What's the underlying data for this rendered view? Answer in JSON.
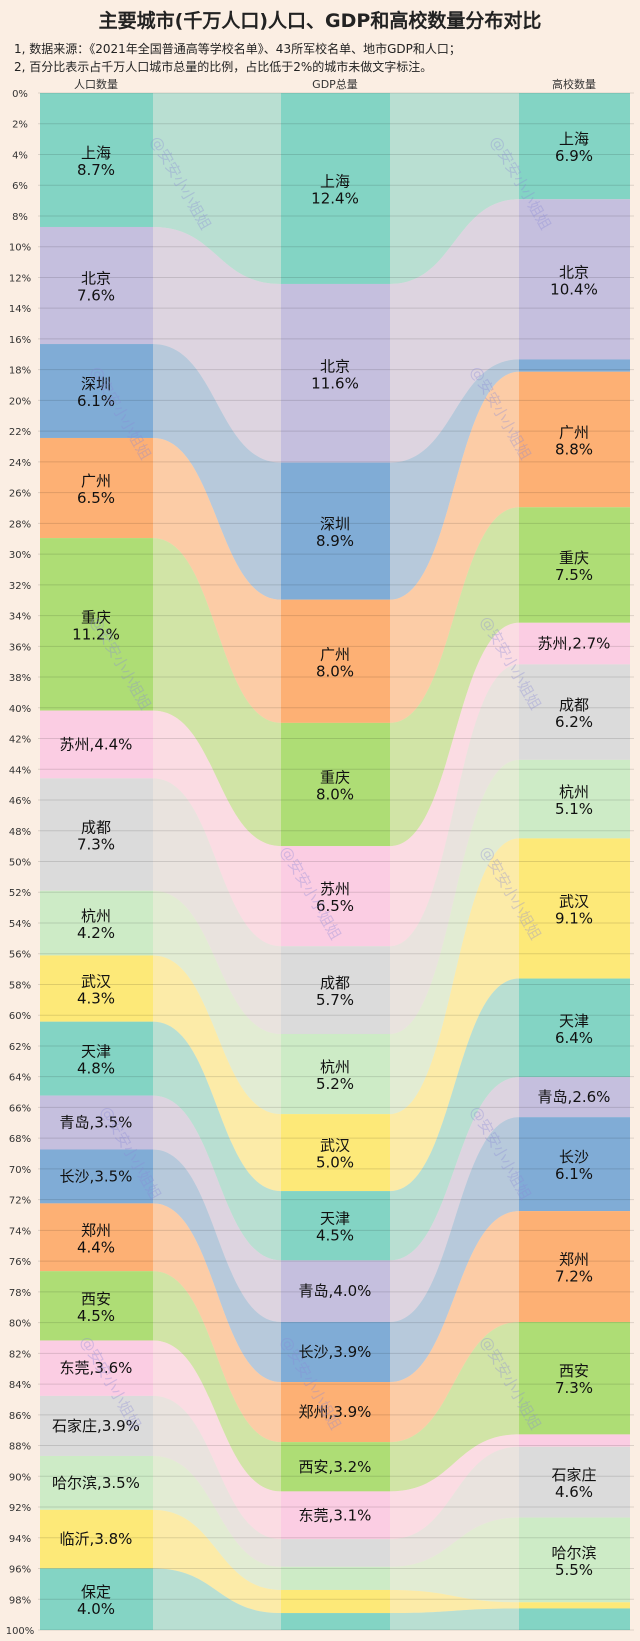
{
  "title": "主要城市(千万人口)人口、GDP和高校数量分布对比",
  "notes": [
    "1, 数据来源：《2021年全国普通高等学校名单》、43所军校名单、地市GDP和人口；",
    "2, 百分比表示占千万人口城市总量的比例，占比低于2%的城市未做文字标注。"
  ],
  "watermark": "@安安小小姐姐",
  "chart_data": {
    "type": "sankey",
    "columns": [
      "人口数量",
      "GDP总量",
      "高校数量"
    ],
    "yticks": [
      "0%",
      "2%",
      "4%",
      "6%",
      "8%",
      "10%",
      "12%",
      "14%",
      "16%",
      "18%",
      "20%",
      "22%",
      "24%",
      "26%",
      "28%",
      "30%",
      "32%",
      "34%",
      "36%",
      "38%",
      "40%",
      "42%",
      "44%",
      "46%",
      "48%",
      "50%",
      "52%",
      "54%",
      "56%",
      "58%",
      "60%",
      "62%",
      "64%",
      "66%",
      "68%",
      "70%",
      "72%",
      "74%",
      "76%",
      "78%",
      "80%",
      "82%",
      "84%",
      "86%",
      "88%",
      "90%",
      "92%",
      "94%",
      "96%",
      "98%",
      "100%"
    ],
    "cities": [
      "上海",
      "北京",
      "深圳",
      "广州",
      "重庆",
      "苏州",
      "成都",
      "杭州",
      "武汉",
      "天津",
      "青岛",
      "长沙",
      "郑州",
      "西安",
      "东莞",
      "石家庄",
      "哈尔滨",
      "临沂",
      "保定"
    ],
    "colors": {
      "上海": "#83d4c4",
      "北京": "#c5bfde",
      "深圳": "#80acd6",
      "广州": "#fdb074",
      "重庆": "#aedd75",
      "苏州": "#fbcde3",
      "成都": "#dbdbdb",
      "杭州": "#cdebc6",
      "武汉": "#fde978",
      "天津": "#83d4c4",
      "青岛": "#c5bfde",
      "长沙": "#80acd6",
      "郑州": "#fdb074",
      "西安": "#aedd75",
      "东莞": "#fbcde3",
      "石家庄": "#dbdbdb",
      "哈尔滨": "#cdebc6",
      "临沂": "#fde978",
      "保定": "#83d4c4"
    },
    "population_pct": {
      "上海": 8.7,
      "北京": 7.6,
      "深圳": 6.1,
      "广州": 6.5,
      "重庆": 11.2,
      "苏州": 4.4,
      "成都": 7.3,
      "杭州": 4.2,
      "武汉": 4.3,
      "天津": 4.8,
      "青岛": 3.5,
      "长沙": 3.5,
      "郑州": 4.4,
      "西安": 4.5,
      "东莞": 3.6,
      "石家庄": 3.9,
      "哈尔滨": 3.5,
      "临沂": 3.8,
      "保定": 4.0
    },
    "population_labels": {
      "上海": "8.7%",
      "北京": "7.6%",
      "深圳": "6.1%",
      "广州": "6.5%",
      "重庆": "11.2%",
      "苏州": "4.4%",
      "成都": "7.3%",
      "杭州": "4.2%",
      "武汉": "4.3%",
      "天津": "4.8%",
      "青岛": "3.5%",
      "长沙": "3.5%",
      "郑州": "4.4%",
      "西安": "4.5%",
      "东莞": "3.6%",
      "石家庄": "3.9%",
      "哈尔滨": "3.5%",
      "临沂": "3.8%",
      "保定": "4.0%"
    },
    "gdp_pct": {
      "上海": 12.4,
      "北京": 11.6,
      "深圳": 8.9,
      "广州": 8.0,
      "重庆": 8.0,
      "苏州": 6.5,
      "成都": 5.7,
      "杭州": 5.2,
      "武汉": 5.0,
      "天津": 4.5,
      "青岛": 4.0,
      "长沙": 3.9,
      "郑州": 3.9,
      "西安": 3.2,
      "东莞": 3.1,
      "石家庄": 1.8,
      "哈尔滨": 1.5,
      "临沂": 1.5,
      "保定": 1.1
    },
    "gdp_labels": {
      "上海": "12.4%",
      "北京": "11.6%",
      "深圳": "8.9%",
      "广州": "8.0%",
      "重庆": "8.0%",
      "苏州": "6.5%",
      "成都": "5.7%",
      "杭州": "5.2%",
      "武汉": "5.0%",
      "天津": "4.5%",
      "青岛": "4.0%",
      "长沙": "3.9%",
      "郑州": "3.9%",
      "西安": "3.2%",
      "东莞": "3.1%"
    },
    "university_pct": {
      "上海": 6.9,
      "北京": 10.4,
      "深圳": 0.8,
      "广州": 8.8,
      "重庆": 7.5,
      "苏州": 2.7,
      "成都": 6.2,
      "杭州": 5.1,
      "武汉": 9.1,
      "天津": 6.4,
      "青岛": 2.6,
      "长沙": 6.1,
      "郑州": 7.2,
      "西安": 7.3,
      "东莞": 0.8,
      "石家庄": 4.6,
      "哈尔滨": 5.5,
      "临沂": 0.4,
      "保定": 1.4
    },
    "university_labels": {
      "上海": "6.9%",
      "北京": "10.4%",
      "广州": "8.8%",
      "重庆": "7.5%",
      "苏州": "2.7%",
      "成都": "6.2%",
      "杭州": "5.1%",
      "武汉": "9.1%",
      "天津": "6.4%",
      "青岛": "2.6%",
      "长沙": "6.1%",
      "郑州": "7.2%",
      "西安": "7.3%",
      "石家庄": "4.6%",
      "哈尔滨": "5.5%"
    },
    "inline_label_cities": {
      "population": [
        "苏州",
        "青岛",
        "长沙",
        "东莞",
        "石家庄",
        "哈尔滨",
        "临沂"
      ],
      "gdp": [
        "青岛",
        "长沙",
        "郑州",
        "西安",
        "东莞"
      ],
      "university": [
        "苏州",
        "青岛"
      ]
    },
    "ylim": [
      0,
      100
    ],
    "grid": true
  }
}
